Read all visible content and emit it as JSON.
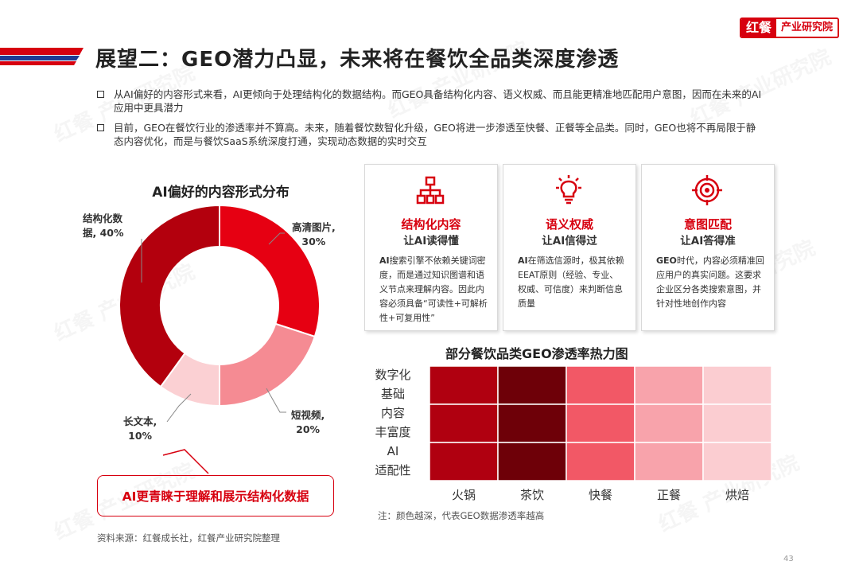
{
  "brand": {
    "mark": "红餐",
    "name": "产业研究院"
  },
  "title": "展望二：GEO潜力凸显，未来将在餐饮全品类深度渗透",
  "bullets": [
    "从AI偏好的内容形式来看，AI更倾向于处理结构化的数据结构。而GEO具备结构化内容、语义权威、而且能更精准地匹配用户意图，因而在未来的AI应用中更具潜力",
    "目前，GEO在餐饮行业的渗透率并不算高。未来，随着餐饮数智化升级，GEO将进一步渗透至快餐、正餐等全品类。同时，GEO也将不再局限于静态内容优化，而是与餐饮SaaS系统深度打通，实现动态数据的实时交互"
  ],
  "chart_data": [
    {
      "type": "pie",
      "title": "AI偏好的内容形式分布",
      "slices": [
        {
          "label": "高清图片",
          "value": 30,
          "display": "30%",
          "color": "#e60012"
        },
        {
          "label": "短视频",
          "value": 20,
          "display": "20%",
          "color": "#f58b93"
        },
        {
          "label": "长文本",
          "value": 10,
          "display": "10%",
          "color": "#fbd0d3"
        },
        {
          "label": "结构化数据",
          "value": 40,
          "display": "40%",
          "color": "#b3000d"
        }
      ]
    },
    {
      "type": "heatmap",
      "title": "部分餐饮品类GEO渗透率热力图",
      "x_categories": [
        "火锅",
        "茶饮",
        "快餐",
        "正餐",
        "烘焙"
      ],
      "y_categories": [
        "数字化基础",
        "内容丰富度",
        "AI适配性"
      ],
      "colors": [
        [
          "#b00010",
          "#6e0008",
          "#f25866",
          "#f8a3ab",
          "#fbcdd1"
        ],
        [
          "#b00010",
          "#6e0008",
          "#f25866",
          "#f8a3ab",
          "#fbcdd1"
        ],
        [
          "#b00010",
          "#6e0008",
          "#f25866",
          "#f8a3ab",
          "#fbcdd1"
        ]
      ]
    }
  ],
  "donut_labels": {
    "slice_0": {
      "name": "高清图片,",
      "pct": "30%"
    },
    "slice_1": {
      "name": "短视频,",
      "pct": "20%"
    },
    "slice_2": {
      "name": "长文本,",
      "pct": "10%"
    },
    "slice_3": {
      "name_1": "结构化数",
      "name_2": "据, 40%"
    }
  },
  "y_label_lines": [
    [
      "数字化",
      "基础"
    ],
    [
      "内容",
      "丰富度"
    ],
    [
      "AI",
      "适配性"
    ]
  ],
  "callout": "AI更青睐于理解和展示结构化数据",
  "cards": [
    {
      "icon": "hierarchy-icon",
      "heading": "结构化内容",
      "sub": "让AI读得懂",
      "body_bold": "AI",
      "body": "搜索引擎不依赖关键词密度，而是通过知识图谱和语义节点来理解内容。因此内容必须具备“可读性+可解析性+可复用性”"
    },
    {
      "icon": "lightbulb-icon",
      "heading": "语义权威",
      "sub": "让AI信得过",
      "body_bold": "AI",
      "body": "在筛选信源时，极其依赖EEAT原则（经验、专业、权威、可信度）来判断信息质量"
    },
    {
      "icon": "target-icon",
      "heading": "意图匹配",
      "sub": "让AI答得准",
      "body_bold": "GEO",
      "body": "时代，内容必须精准回应用户的真实问题。这要求企业区分各类搜索意图，并针对性地创作内容"
    }
  ],
  "heatmap_note": "注：颜色越深，代表GEO数据渗透率越高",
  "source": "资料来源：红餐成长社，红餐产业研究院整理",
  "page_number": "43",
  "colors": {
    "accent": "#d7000f",
    "stripe_blue": "#1f3a93"
  }
}
